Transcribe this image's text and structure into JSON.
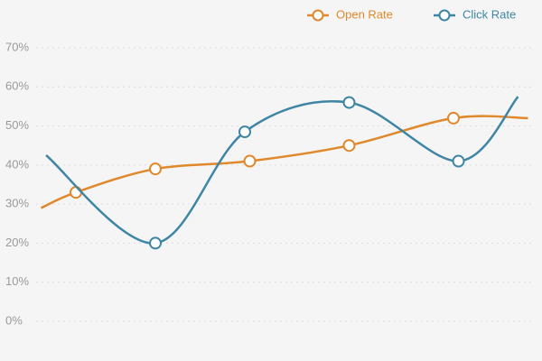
{
  "chart_data": {
    "type": "line",
    "xlim": [
      0,
      100
    ],
    "ylim": [
      0,
      70
    ],
    "yticks": [
      {
        "value": 0,
        "label": "0%"
      },
      {
        "value": 10,
        "label": "10%"
      },
      {
        "value": 20,
        "label": "20%"
      },
      {
        "value": 30,
        "label": "30%"
      },
      {
        "value": 40,
        "label": "40%"
      },
      {
        "value": 50,
        "label": "50%"
      },
      {
        "value": 60,
        "label": "60%"
      },
      {
        "value": 70,
        "label": "70%"
      }
    ],
    "grid": true,
    "legend": "top-right",
    "series": [
      {
        "name": "Open Rate",
        "color": "#e0882c",
        "x": [
          1,
          8,
          24,
          43,
          63,
          84,
          99
        ],
        "values": [
          29,
          33,
          39,
          41,
          45,
          52,
          52
        ],
        "markers": [
          false,
          true,
          true,
          true,
          true,
          true,
          false
        ]
      },
      {
        "name": "Click Rate",
        "color": "#3e86a4",
        "x": [
          2,
          24,
          42,
          63,
          85,
          97
        ],
        "values": [
          42.5,
          20,
          48.5,
          56,
          41,
          57.5
        ],
        "markers": [
          false,
          true,
          true,
          true,
          true,
          false
        ]
      }
    ]
  }
}
